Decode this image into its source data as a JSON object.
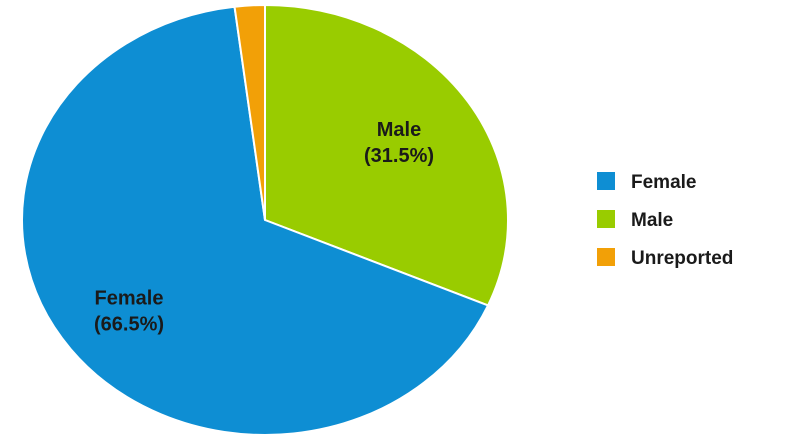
{
  "chart_data": {
    "type": "pie",
    "title": "",
    "series": [
      {
        "slices": [
          {
            "label": "Male",
            "value": 31.5,
            "display": "(31.5%)",
            "color": "#99cc00"
          },
          {
            "label": "Female",
            "value": 66.5,
            "display": "(66.5%)",
            "color": "#0e8ed3"
          },
          {
            "label": "Unreported",
            "value": 2.0,
            "display": "",
            "color": "#f2a007"
          }
        ]
      }
    ],
    "legend": {
      "position": "right",
      "entries": [
        {
          "label": "Female",
          "color": "#0e8ed3"
        },
        {
          "label": "Male",
          "color": "#99cc00"
        },
        {
          "label": "Unreported",
          "color": "#f2a007"
        }
      ]
    },
    "start_angle": "12 o'clock",
    "direction": "clockwise-from-male"
  }
}
